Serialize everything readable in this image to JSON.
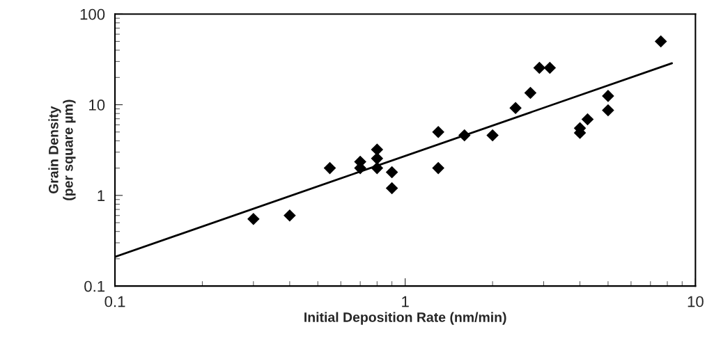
{
  "chart_data": {
    "type": "scatter",
    "xlabel": "Initial Deposition Rate (nm/min)",
    "ylabel": "Grain Density\n(per square µm)",
    "log": "xy",
    "xlim": [
      0.1,
      10
    ],
    "ylim": [
      0.1,
      100
    ],
    "xticks": [
      0.1,
      1,
      10
    ],
    "yticks": [
      0.1,
      1,
      10,
      100
    ],
    "grid": false,
    "legend": false,
    "series": [
      {
        "marker": "diamond",
        "color": "#000000",
        "x": [
          0.3,
          0.4,
          0.55,
          0.7,
          0.7,
          0.8,
          0.8,
          0.8,
          0.9,
          0.9,
          1.3,
          1.3,
          1.6,
          2.0,
          2.4,
          2.7,
          2.9,
          3.15,
          4.0,
          4.0,
          4.25,
          5.0,
          5.0,
          7.6
        ],
        "values": [
          0.55,
          0.6,
          2.0,
          2.35,
          2.0,
          3.2,
          2.55,
          2.0,
          1.8,
          1.2,
          5.0,
          2.0,
          4.6,
          4.6,
          9.2,
          13.5,
          25.5,
          25.5,
          5.5,
          4.9,
          6.9,
          12.5,
          8.7,
          50
        ]
      },
      {
        "type": "line",
        "marker": "none",
        "color": "#000000",
        "x": [
          0.1,
          8.3
        ],
        "values": [
          0.21,
          28.7
        ]
      }
    ]
  }
}
